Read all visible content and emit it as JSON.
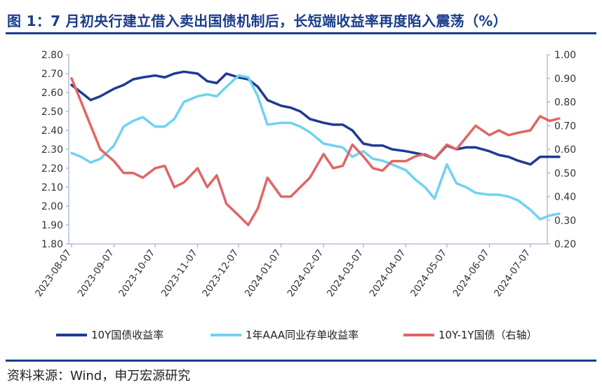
{
  "title": "图 1：7 月初央行建立借入卖出国债机制后，长短端收益率再度陷入震荡（%）",
  "source": "资料来源：Wind，申万宏源研究",
  "colors": {
    "title": "#1a3c8c",
    "axis": "#8aa0c8",
    "s10y": "#1f3a93",
    "s1y": "#6fd2f2",
    "spread": "#e06666"
  },
  "chart_data": {
    "type": "line",
    "title": "图 1：7 月初央行建立借入卖出国债机制后，长短端收益率再度陷入震荡（%）",
    "x_labels": [
      "2023-08-07",
      "2023-09-07",
      "2023-10-07",
      "2023-11-07",
      "2023-12-07",
      "2024-01-07",
      "2024-02-07",
      "2024-03-07",
      "2024-04-07",
      "2024-05-07",
      "2024-06-07",
      "2024-07-07"
    ],
    "left_axis": {
      "range": [
        1.8,
        2.8
      ],
      "ticks": [
        "1.80",
        "1.90",
        "2.00",
        "2.10",
        "2.20",
        "2.30",
        "2.40",
        "2.50",
        "2.60",
        "2.70",
        "2.80"
      ]
    },
    "right_axis": {
      "range": [
        0.2,
        1.0
      ],
      "ticks": [
        "0.20",
        "0.30",
        "0.40",
        "0.50",
        "0.60",
        "0.70",
        "0.80",
        "0.90",
        "1.00"
      ]
    },
    "grid": false,
    "legend_position": "bottom",
    "series": [
      {
        "name": "10Y国债收益率",
        "axis": "left",
        "color": "#1f3a93",
        "points": [
          [
            "2023-08-07",
            2.64
          ],
          [
            "2023-08-14",
            2.6
          ],
          [
            "2023-08-21",
            2.56
          ],
          [
            "2023-08-28",
            2.58
          ],
          [
            "2023-09-07",
            2.62
          ],
          [
            "2023-09-14",
            2.64
          ],
          [
            "2023-09-21",
            2.67
          ],
          [
            "2023-09-28",
            2.68
          ],
          [
            "2023-10-07",
            2.69
          ],
          [
            "2023-10-14",
            2.68
          ],
          [
            "2023-10-21",
            2.7
          ],
          [
            "2023-10-28",
            2.71
          ],
          [
            "2023-11-07",
            2.7
          ],
          [
            "2023-11-14",
            2.66
          ],
          [
            "2023-11-21",
            2.65
          ],
          [
            "2023-11-28",
            2.7
          ],
          [
            "2023-12-07",
            2.68
          ],
          [
            "2023-12-14",
            2.67
          ],
          [
            "2023-12-21",
            2.63
          ],
          [
            "2023-12-28",
            2.56
          ],
          [
            "2024-01-07",
            2.53
          ],
          [
            "2024-01-14",
            2.52
          ],
          [
            "2024-01-21",
            2.5
          ],
          [
            "2024-01-28",
            2.46
          ],
          [
            "2024-02-07",
            2.44
          ],
          [
            "2024-02-14",
            2.43
          ],
          [
            "2024-02-21",
            2.43
          ],
          [
            "2024-02-28",
            2.4
          ],
          [
            "2024-03-07",
            2.33
          ],
          [
            "2024-03-14",
            2.32
          ],
          [
            "2024-03-21",
            2.32
          ],
          [
            "2024-03-28",
            2.3
          ],
          [
            "2024-04-07",
            2.29
          ],
          [
            "2024-04-14",
            2.28
          ],
          [
            "2024-04-21",
            2.27
          ],
          [
            "2024-04-28",
            2.25
          ],
          [
            "2024-05-07",
            2.32
          ],
          [
            "2024-05-14",
            2.3
          ],
          [
            "2024-05-21",
            2.31
          ],
          [
            "2024-05-28",
            2.31
          ],
          [
            "2024-06-07",
            2.29
          ],
          [
            "2024-06-14",
            2.27
          ],
          [
            "2024-06-21",
            2.26
          ],
          [
            "2024-06-28",
            2.24
          ],
          [
            "2024-07-07",
            2.22
          ],
          [
            "2024-07-14",
            2.26
          ],
          [
            "2024-07-21",
            2.26
          ],
          [
            "2024-07-28",
            2.26
          ]
        ]
      },
      {
        "name": "1年AAA同业存单收益率",
        "axis": "left",
        "color": "#6fd2f2",
        "points": [
          [
            "2023-08-07",
            2.28
          ],
          [
            "2023-08-14",
            2.26
          ],
          [
            "2023-08-21",
            2.23
          ],
          [
            "2023-08-28",
            2.25
          ],
          [
            "2023-09-07",
            2.32
          ],
          [
            "2023-09-14",
            2.42
          ],
          [
            "2023-09-21",
            2.45
          ],
          [
            "2023-09-28",
            2.47
          ],
          [
            "2023-10-07",
            2.42
          ],
          [
            "2023-10-14",
            2.42
          ],
          [
            "2023-10-21",
            2.46
          ],
          [
            "2023-10-28",
            2.55
          ],
          [
            "2023-11-07",
            2.58
          ],
          [
            "2023-11-14",
            2.59
          ],
          [
            "2023-11-21",
            2.58
          ],
          [
            "2023-11-28",
            2.63
          ],
          [
            "2023-12-07",
            2.69
          ],
          [
            "2023-12-14",
            2.68
          ],
          [
            "2023-12-21",
            2.58
          ],
          [
            "2023-12-28",
            2.43
          ],
          [
            "2024-01-07",
            2.44
          ],
          [
            "2024-01-14",
            2.44
          ],
          [
            "2024-01-21",
            2.42
          ],
          [
            "2024-01-28",
            2.39
          ],
          [
            "2024-02-07",
            2.33
          ],
          [
            "2024-02-14",
            2.32
          ],
          [
            "2024-02-21",
            2.31
          ],
          [
            "2024-02-28",
            2.26
          ],
          [
            "2024-03-07",
            2.29
          ],
          [
            "2024-03-14",
            2.25
          ],
          [
            "2024-03-21",
            2.24
          ],
          [
            "2024-03-28",
            2.22
          ],
          [
            "2024-04-07",
            2.19
          ],
          [
            "2024-04-14",
            2.14
          ],
          [
            "2024-04-21",
            2.1
          ],
          [
            "2024-04-28",
            2.04
          ],
          [
            "2024-05-07",
            2.22
          ],
          [
            "2024-05-14",
            2.12
          ],
          [
            "2024-05-21",
            2.1
          ],
          [
            "2024-05-28",
            2.07
          ],
          [
            "2024-06-07",
            2.06
          ],
          [
            "2024-06-14",
            2.06
          ],
          [
            "2024-06-21",
            2.05
          ],
          [
            "2024-06-28",
            2.03
          ],
          [
            "2024-07-07",
            1.98
          ],
          [
            "2024-07-14",
            1.93
          ],
          [
            "2024-07-21",
            1.95
          ],
          [
            "2024-07-28",
            1.96
          ]
        ]
      },
      {
        "name": "10Y-1Y国债（右轴）",
        "axis": "right",
        "color": "#e06666",
        "points": [
          [
            "2023-08-07",
            0.9
          ],
          [
            "2023-08-14",
            0.8
          ],
          [
            "2023-08-21",
            0.7
          ],
          [
            "2023-08-28",
            0.6
          ],
          [
            "2023-09-07",
            0.55
          ],
          [
            "2023-09-14",
            0.5
          ],
          [
            "2023-09-21",
            0.5
          ],
          [
            "2023-09-28",
            0.48
          ],
          [
            "2023-10-07",
            0.52
          ],
          [
            "2023-10-14",
            0.53
          ],
          [
            "2023-10-21",
            0.44
          ],
          [
            "2023-10-28",
            0.46
          ],
          [
            "2023-11-07",
            0.52
          ],
          [
            "2023-11-14",
            0.44
          ],
          [
            "2023-11-21",
            0.49
          ],
          [
            "2023-11-28",
            0.37
          ],
          [
            "2023-12-07",
            0.32
          ],
          [
            "2023-12-14",
            0.28
          ],
          [
            "2023-12-21",
            0.35
          ],
          [
            "2023-12-28",
            0.48
          ],
          [
            "2024-01-07",
            0.4
          ],
          [
            "2024-01-14",
            0.4
          ],
          [
            "2024-01-21",
            0.44
          ],
          [
            "2024-01-28",
            0.48
          ],
          [
            "2024-02-07",
            0.58
          ],
          [
            "2024-02-14",
            0.52
          ],
          [
            "2024-02-21",
            0.53
          ],
          [
            "2024-02-28",
            0.62
          ],
          [
            "2024-03-07",
            0.57
          ],
          [
            "2024-03-14",
            0.52
          ],
          [
            "2024-03-21",
            0.51
          ],
          [
            "2024-03-28",
            0.55
          ],
          [
            "2024-04-07",
            0.55
          ],
          [
            "2024-04-14",
            0.57
          ],
          [
            "2024-04-21",
            0.58
          ],
          [
            "2024-04-28",
            0.56
          ],
          [
            "2024-05-07",
            0.62
          ],
          [
            "2024-05-14",
            0.6
          ],
          [
            "2024-05-21",
            0.65
          ],
          [
            "2024-05-28",
            0.7
          ],
          [
            "2024-06-07",
            0.66
          ],
          [
            "2024-06-14",
            0.68
          ],
          [
            "2024-06-21",
            0.66
          ],
          [
            "2024-06-28",
            0.67
          ],
          [
            "2024-07-07",
            0.68
          ],
          [
            "2024-07-14",
            0.74
          ],
          [
            "2024-07-21",
            0.72
          ],
          [
            "2024-07-28",
            0.73
          ]
        ]
      }
    ]
  }
}
